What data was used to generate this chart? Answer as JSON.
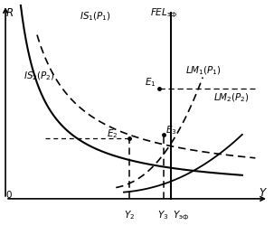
{
  "figsize": [
    3.03,
    2.6
  ],
  "dpi": 100,
  "bg_color": "white",
  "xlim": [
    0,
    10
  ],
  "ylim": [
    0,
    10
  ],
  "FEL_x": 6.3,
  "Y2_x": 4.7,
  "Y3_x": 6.0,
  "E1_x": 5.85,
  "E1_y": 5.7,
  "E2_x": 4.7,
  "E2_y": 3.1,
  "E3_x": 6.0,
  "E3_y": 3.3,
  "IS1_label": [
    2.8,
    9.1
  ],
  "IS2_label": [
    0.7,
    6.3
  ],
  "LM1_label": [
    6.85,
    6.6
  ],
  "LM2_label": [
    7.9,
    5.2
  ],
  "FEL_label": [
    5.5,
    9.55
  ],
  "R_label": [
    0.15,
    9.55
  ],
  "Y_label": [
    9.8,
    0.3
  ],
  "zero_label": [
    0.15,
    0.25
  ]
}
